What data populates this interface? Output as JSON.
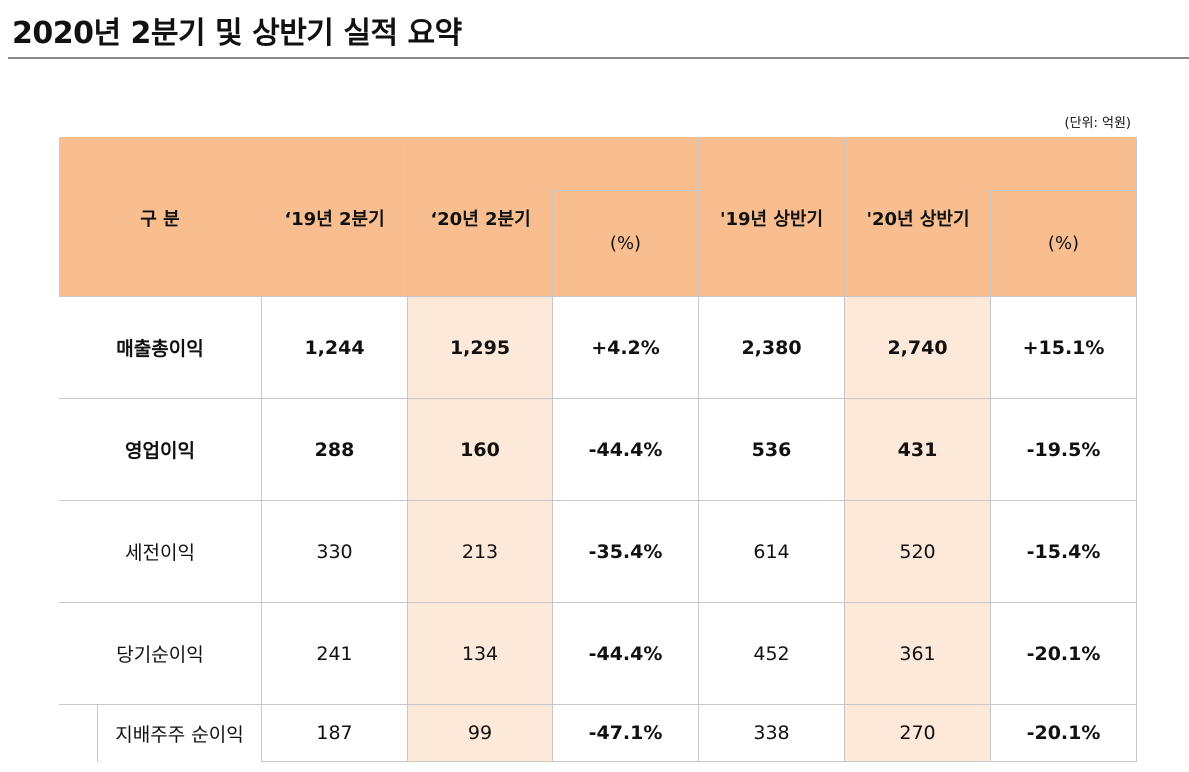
{
  "header": {
    "title": "2020년 2분기 및 상반기 실적 요약",
    "unit": "(단위: 억원)"
  },
  "table": {
    "columns": [
      "구 분",
      "‘19년 2분기",
      "‘20년 2분기",
      "(%)",
      "'19년 상반기",
      "'20년 상반기",
      "(%)"
    ],
    "rows": [
      [
        "매출총이익",
        "1,244",
        "1,295",
        "+4.2%",
        "2,380",
        "2,740",
        "+15.1%"
      ],
      [
        "영업이익",
        "288",
        "160",
        "-44.4%",
        "536",
        "431",
        "-19.5%"
      ],
      [
        "세전이익",
        "330",
        "213",
        "-35.4%",
        "614",
        "520",
        "-15.4%"
      ],
      [
        "당기순이익",
        "241",
        "134",
        "-44.4%",
        "452",
        "361",
        "-20.1%"
      ],
      [
        "지배주주 순이익",
        "187",
        "99",
        "-47.1%",
        "338",
        "270",
        "-20.1%"
      ]
    ]
  }
}
